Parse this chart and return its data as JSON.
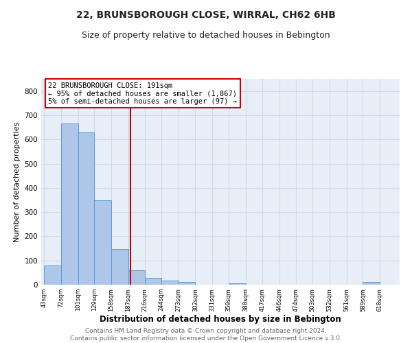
{
  "title": "22, BRUNSBOROUGH CLOSE, WIRRAL, CH62 6HB",
  "subtitle": "Size of property relative to detached houses in Bebington",
  "xlabel": "Distribution of detached houses by size in Bebington",
  "ylabel": "Number of detached properties",
  "bar_left_edges": [
    43,
    72,
    101,
    129,
    158,
    187,
    216,
    244,
    273,
    302,
    331,
    359,
    388,
    417,
    446,
    474,
    503,
    532,
    561,
    589
  ],
  "bar_heights": [
    80,
    665,
    630,
    348,
    148,
    60,
    27,
    18,
    10,
    0,
    0,
    5,
    0,
    0,
    0,
    0,
    0,
    0,
    0,
    10
  ],
  "bar_widths": [
    29,
    29,
    28,
    29,
    29,
    29,
    28,
    29,
    29,
    28,
    28,
    29,
    29,
    29,
    28,
    29,
    29,
    29,
    28,
    29
  ],
  "tick_labels": [
    "43sqm",
    "72sqm",
    "101sqm",
    "129sqm",
    "158sqm",
    "187sqm",
    "216sqm",
    "244sqm",
    "273sqm",
    "302sqm",
    "331sqm",
    "359sqm",
    "388sqm",
    "417sqm",
    "446sqm",
    "474sqm",
    "503sqm",
    "532sqm",
    "561sqm",
    "589sqm",
    "618sqm"
  ],
  "tick_positions": [
    43,
    72,
    101,
    129,
    158,
    187,
    216,
    244,
    273,
    302,
    331,
    359,
    388,
    417,
    446,
    474,
    503,
    532,
    561,
    589,
    618
  ],
  "bar_color": "#aec6e8",
  "bar_edge_color": "#5b9bd5",
  "vline_x": 191,
  "vline_color": "#cc0000",
  "annotation_line1": "22 BRUNSBOROUGH CLOSE: 191sqm",
  "annotation_line2": "← 95% of detached houses are smaller (1,867)",
  "annotation_line3": "5% of semi-detached houses are larger (97) →",
  "annotation_box_color": "#ffffff",
  "annotation_box_edge": "#cc0000",
  "ylim": [
    0,
    850
  ],
  "yticks": [
    0,
    100,
    200,
    300,
    400,
    500,
    600,
    700,
    800
  ],
  "grid_color": "#d0d8e8",
  "bg_color": "#e8eef8",
  "footer_line1": "Contains HM Land Registry data © Crown copyright and database right 2024.",
  "footer_line2": "Contains public sector information licensed under the Open Government Licence v.3.0.",
  "title_fontsize": 10,
  "subtitle_fontsize": 9,
  "xlabel_fontsize": 8.5,
  "ylabel_fontsize": 8,
  "annotation_fontsize": 7.5,
  "footer_fontsize": 6.5,
  "xlim_left": 38,
  "xlim_right": 652
}
